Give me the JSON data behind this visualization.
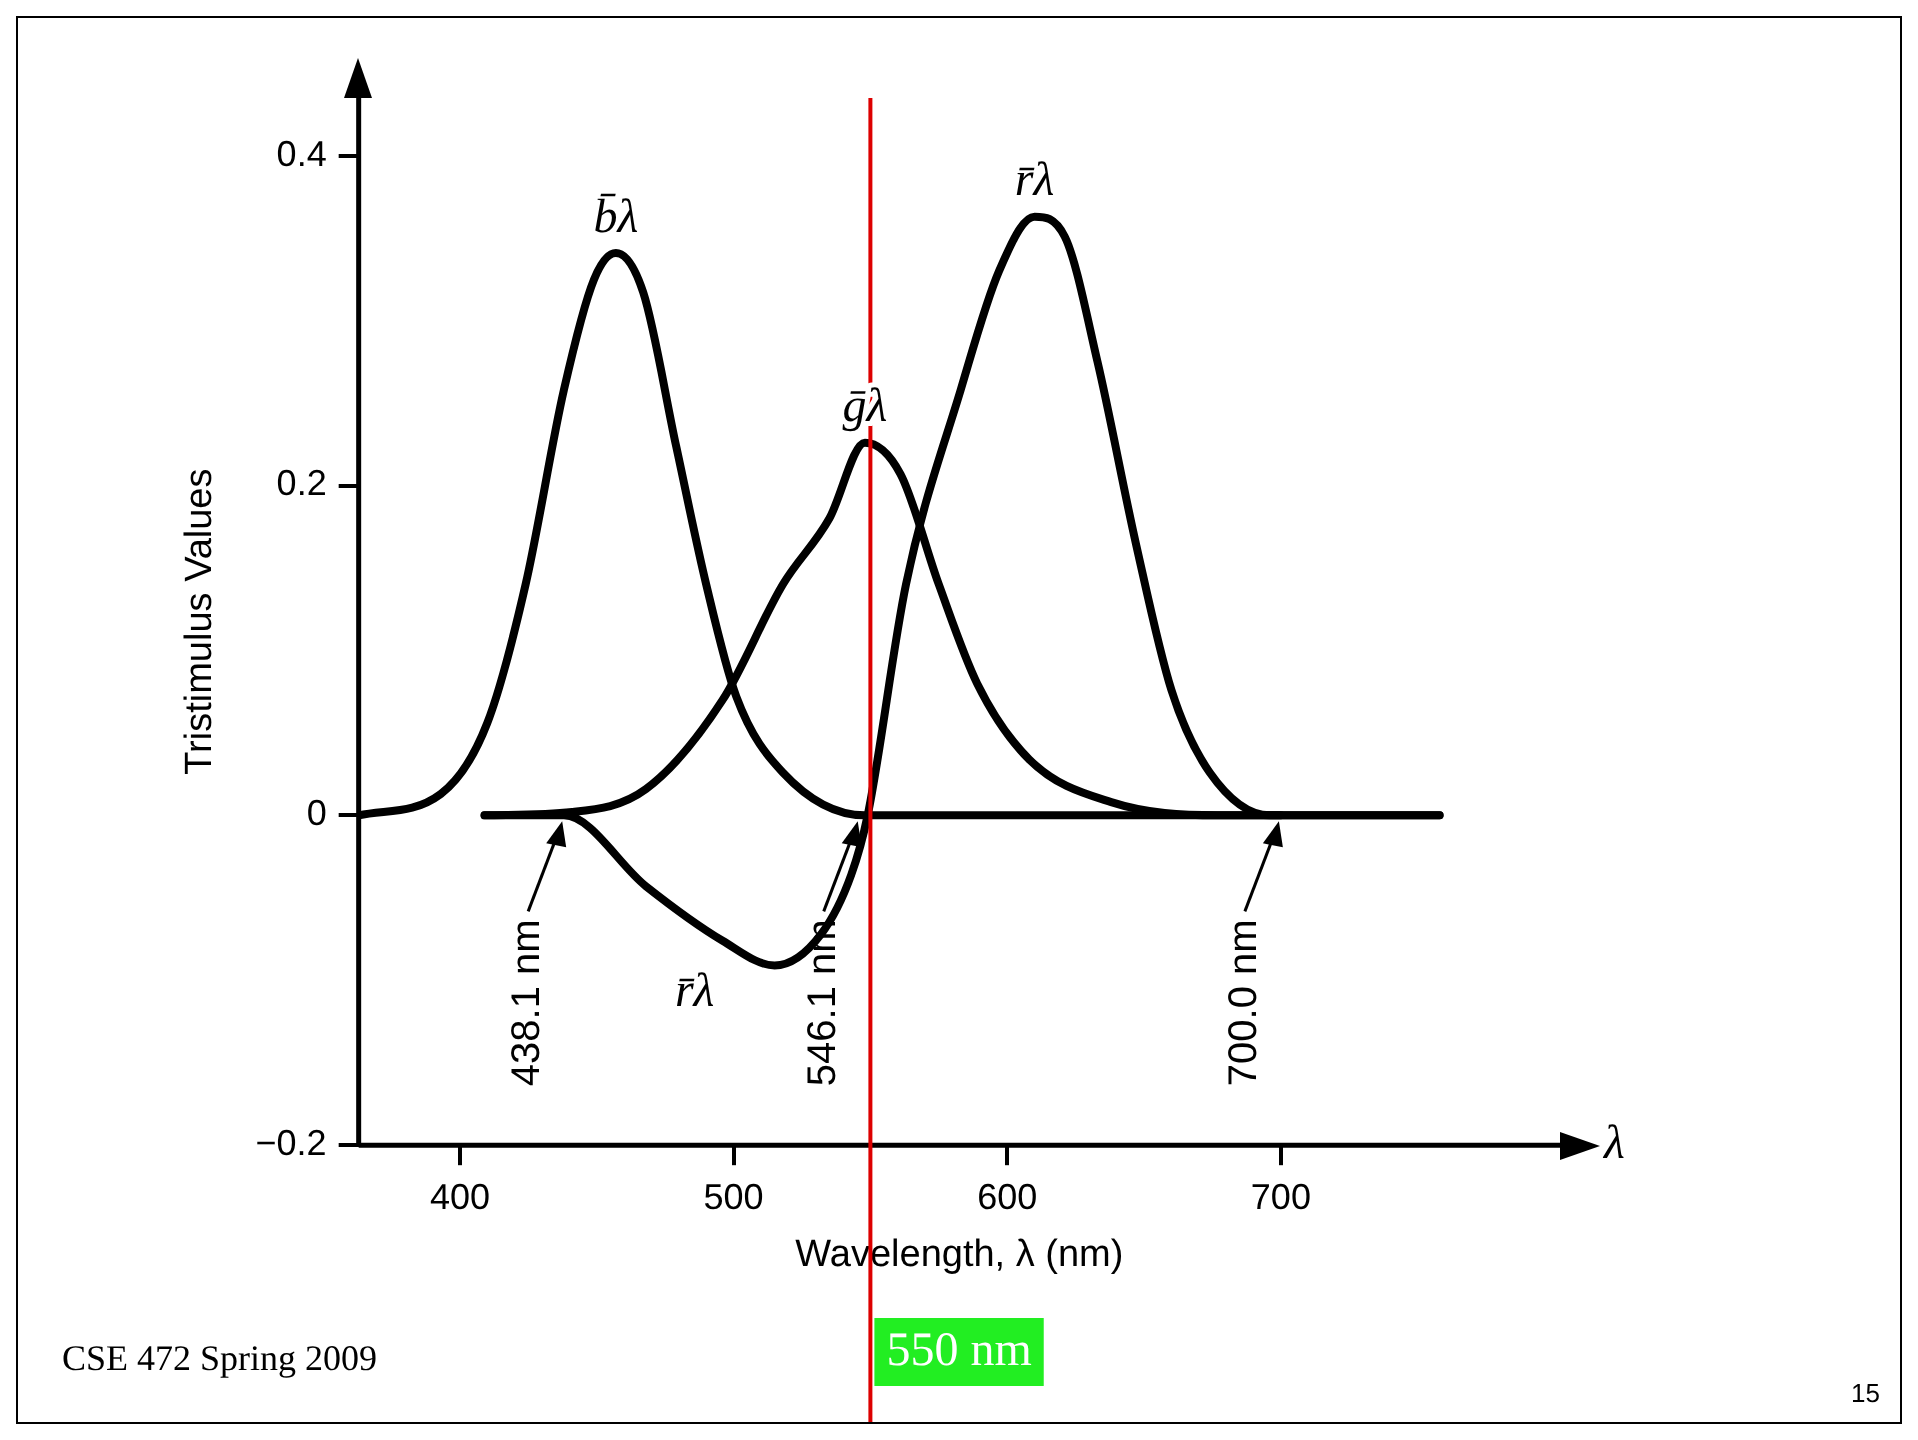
{
  "chart_data": {
    "type": "line",
    "xlabel": "Wavelength, λ (nm)",
    "ylabel": "Tristimulus Values",
    "x": [
      363,
      393,
      410,
      424,
      438,
      449,
      457,
      467,
      479,
      490,
      501,
      518,
      548,
      600,
      758
    ],
    "series": [
      {
        "name": "b̄λ",
        "color": "#000000",
        "values": [
          0,
          0.013,
          0.056,
          0.14,
          0.258,
          0.325,
          0.341,
          0.317,
          0.224,
          0.14,
          0.072,
          0.026,
          0,
          0,
          0
        ]
      },
      {
        "name": "ḡλ",
        "color": "#000000",
        "x": [
          409,
          441,
          468,
          496,
          518,
          535,
          548,
          561,
          575,
          589,
          608,
          638,
          677,
          700
        ],
        "values": [
          0,
          0.002,
          0.016,
          0.07,
          0.14,
          0.18,
          0.226,
          0.207,
          0.14,
          0.08,
          0.034,
          0.008,
          0,
          0
        ]
      },
      {
        "name": "r̄λ",
        "color": "#000000",
        "x": [
          409,
          438,
          468,
          496,
          515,
          532,
          543,
          549,
          563,
          583,
          597,
          610,
          621,
          633,
          647,
          660,
          674,
          696,
          758
        ],
        "values": [
          0,
          0,
          -0.043,
          -0.076,
          -0.091,
          -0.072,
          -0.036,
          0,
          0.14,
          0.258,
          0.33,
          0.363,
          0.351,
          0.275,
          0.165,
          0.076,
          0.026,
          0,
          0
        ]
      }
    ],
    "xlim": [
      363,
      802
    ],
    "xticks": [
      400,
      500,
      600,
      700
    ],
    "ylim": [
      -0.2,
      0.435
    ],
    "yticks": [
      0.4,
      0.2,
      0,
      {
        "value": -0.2,
        "label": "−0.2"
      }
    ],
    "grid": false,
    "legend": false,
    "marker": "none",
    "line_style": "solid",
    "ref_lines": [
      {
        "axis": "x",
        "value": 550,
        "label": "550 nm",
        "color": "#dd0000"
      }
    ],
    "annotations": [
      {
        "text": "438.1 nm",
        "x": 438.1,
        "y": 0
      },
      {
        "text": "546.1 nm",
        "x": 546.1,
        "y": 0
      },
      {
        "text": "700.0 nm",
        "x": 700,
        "y": 0
      },
      "r̄λ",
      "λ",
      "CSE 472 Spring 2009",
      "15"
    ]
  }
}
